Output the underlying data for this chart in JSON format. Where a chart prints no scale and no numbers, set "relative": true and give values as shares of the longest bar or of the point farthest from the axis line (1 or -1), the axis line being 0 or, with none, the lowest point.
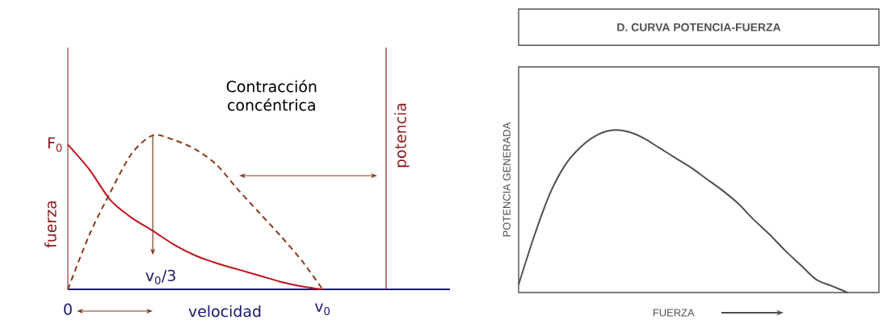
{
  "chart_data": [
    {
      "type": "line",
      "relative": true,
      "xlabel": "velocidad",
      "ylabel": "fuerza",
      "y2label": "potencia",
      "categories": [
        "0",
        null,
        null,
        null,
        null,
        null,
        null,
        null,
        null,
        null,
        null,
        null,
        "v$_{0}$",
        null,
        null,
        null,
        null,
        null,
        null
      ],
      "series": [
        {
          "color": "#c0141e",
          "line_style": "solid",
          "values": [
            0.94,
            0.78,
            0.58,
            0.465,
            0.38,
            0.29,
            0.22,
            0.17,
            0.13,
            0.09,
            0.05,
            0.02,
            0,
            null,
            null,
            null,
            null,
            null,
            null
          ]
        },
        {
          "color": "#8b3a1a",
          "line_style": "dashed",
          "values": [
            0,
            0.35,
            0.63,
            0.88,
            1,
            0.97,
            0.91,
            0.81,
            0.65,
            0.5,
            0.35,
            0.19,
            0,
            null,
            null,
            null,
            null,
            null,
            null
          ]
        }
      ],
      "annotations": [
        "Contracción concéntrica",
        {
          "text": "F$_{0}$",
          "x": "0",
          "y": 0.94
        },
        {
          "text": "v$_{0}$/3",
          "y": 0.38
        }
      ]
    },
    {
      "type": "line",
      "relative": true,
      "title": "D. CURVA POTENCIA-FUERZA",
      "xlabel": "FUERZA",
      "ylabel": "POTENCIA GENERADA",
      "color": "#505050",
      "categories": [
        null,
        null,
        null,
        null,
        null,
        null,
        null,
        null,
        null,
        null,
        null,
        null,
        null,
        null,
        null,
        null,
        null,
        null,
        null,
        null,
        null,
        null,
        null,
        null
      ],
      "values": [
        0.05,
        0.35,
        0.61,
        0.79,
        0.9,
        0.97,
        1,
        0.99,
        0.95,
        0.89,
        0.83,
        0.77,
        0.7,
        0.63,
        0.55,
        0.45,
        0.36,
        0.26,
        0.17,
        0.08,
        0.04,
        0,
        null,
        null
      ]
    }
  ]
}
